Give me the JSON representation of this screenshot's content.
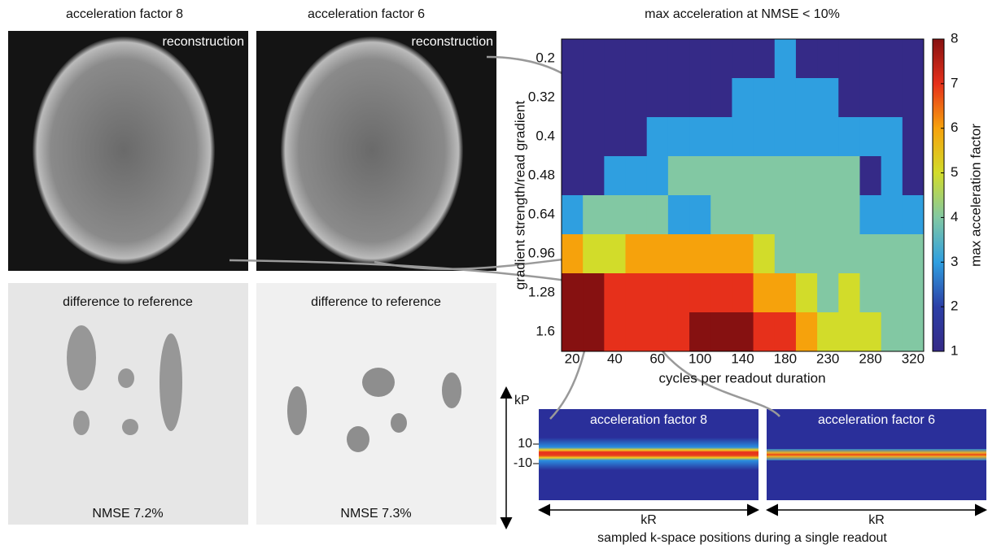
{
  "chart_data": {
    "type": "heatmap",
    "title": "max acceleration at NMSE < 10%",
    "x_label": "cycles per readout duration",
    "y_label": "gradient strength/read gradient",
    "colorbar_label": "max acceleration factor",
    "categories": [
      20,
      null,
      40,
      null,
      60,
      null,
      100,
      null,
      140,
      null,
      180,
      null,
      230,
      null,
      280,
      null,
      320
    ],
    "y_categories": [
      0.2,
      0.32,
      0.4,
      0.48,
      0.64,
      0.96,
      1.28,
      1.6
    ],
    "values": [
      [
        1,
        1,
        1,
        1,
        1,
        1,
        1,
        1,
        1,
        1,
        3,
        1,
        1,
        1,
        1,
        1,
        1
      ],
      [
        1,
        1,
        1,
        1,
        1,
        1,
        1,
        1,
        3,
        3,
        3,
        3,
        3,
        1,
        1,
        1,
        1
      ],
      [
        1,
        1,
        1,
        1,
        3,
        3,
        3,
        3,
        3,
        3,
        3,
        3,
        3,
        3,
        3,
        3,
        1
      ],
      [
        1,
        1,
        3,
        3,
        3,
        4,
        4,
        4,
        4,
        4,
        4,
        4,
        4,
        4,
        1,
        3,
        1
      ],
      [
        3,
        4,
        4,
        4,
        4,
        3,
        3,
        4,
        4,
        4,
        4,
        4,
        4,
        4,
        3,
        3,
        3
      ],
      [
        6,
        5,
        5,
        6,
        6,
        6,
        6,
        6,
        6,
        5,
        4,
        4,
        4,
        4,
        4,
        4,
        4
      ],
      [
        8,
        8,
        7,
        7,
        7,
        7,
        7,
        7,
        7,
        6,
        6,
        5,
        4,
        5,
        4,
        4,
        4
      ],
      [
        8,
        8,
        7,
        7,
        7,
        7,
        8,
        8,
        8,
        7,
        7,
        6,
        5,
        5,
        5,
        4,
        4
      ]
    ],
    "zlim": [
      1,
      8
    ],
    "zticks": [
      1,
      2,
      3,
      4,
      5,
      6,
      7,
      8
    ],
    "colormap": [
      "#352a87",
      "#2c3fa6",
      "#2f9fe0",
      "#82c8a3",
      "#d2dc2a",
      "#f6a20c",
      "#e6301b",
      "#861111"
    ]
  },
  "panels": {
    "columns": [
      {
        "title": "acceleration factor 8",
        "image_label": "reconstruction",
        "difference_label": "difference to reference",
        "nmse": "NMSE 7.2%"
      },
      {
        "title": "acceleration factor 6",
        "image_label": "reconstruction",
        "difference_label": "difference to reference",
        "nmse": "NMSE 7.3%"
      }
    ],
    "kspace": {
      "y_axis_label": "kP",
      "x_axis_label": "kR",
      "yticks": [
        10,
        -10
      ],
      "panels": [
        {
          "title": "acceleration factor 8"
        },
        {
          "title": "acceleration factor 6"
        }
      ],
      "caption": "sampled k-space positions during a single readout"
    }
  }
}
